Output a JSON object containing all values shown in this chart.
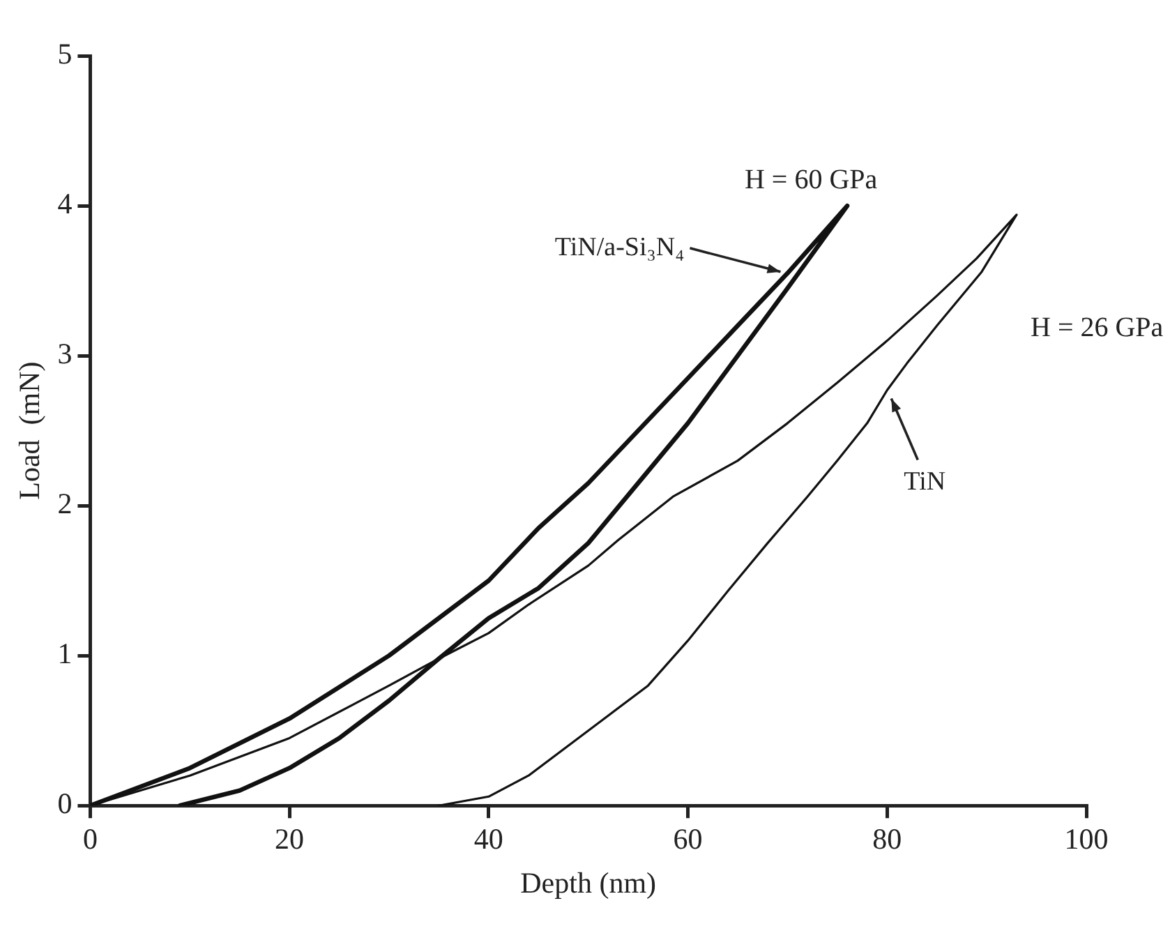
{
  "chart_data": {
    "type": "line",
    "xlabel": "Depth (nm)",
    "ylabel": "Load  (mN)",
    "xlim": [
      0,
      100
    ],
    "ylim": [
      0,
      5
    ],
    "xticks": [
      0,
      20,
      40,
      60,
      80,
      100
    ],
    "yticks": [
      0,
      1,
      2,
      3,
      4,
      5
    ],
    "grid": false,
    "legend": false,
    "marker": "none",
    "line_style": "solid",
    "series": [
      {
        "name": "TiN/a-Si₃N₄",
        "color": "#111111",
        "x": [
          0,
          10,
          20,
          30,
          40,
          45,
          50,
          55,
          60,
          65,
          70,
          76,
          70,
          65,
          60,
          55,
          50,
          45,
          40,
          35,
          30,
          25,
          20,
          15,
          9
        ],
        "values": [
          0,
          0.25,
          0.58,
          1.0,
          1.5,
          1.85,
          2.15,
          2.5,
          2.85,
          3.2,
          3.55,
          4.0,
          3.45,
          3.0,
          2.55,
          2.15,
          1.75,
          1.45,
          1.25,
          0.98,
          0.7,
          0.45,
          0.25,
          0.1,
          0
        ]
      },
      {
        "name": "TiN",
        "color": "#111111",
        "x": [
          0,
          10,
          20,
          30,
          35,
          40,
          44,
          50,
          53,
          58.5,
          65,
          70,
          75,
          80,
          85,
          89,
          93,
          89.5,
          85,
          82,
          80,
          78,
          75,
          72,
          68,
          64,
          60,
          56,
          52,
          48,
          44,
          40,
          35
        ],
        "values": [
          0,
          0.2,
          0.45,
          0.8,
          0.98,
          1.15,
          1.34,
          1.6,
          1.77,
          2.06,
          2.3,
          2.55,
          2.82,
          3.1,
          3.4,
          3.65,
          3.94,
          3.56,
          3.2,
          2.95,
          2.77,
          2.55,
          2.3,
          2.06,
          1.75,
          1.43,
          1.1,
          0.8,
          0.6,
          0.4,
          0.2,
          0.06,
          0
        ]
      }
    ],
    "annotations": [
      "H = 60 GPa",
      "H = 26 GPa"
    ]
  }
}
